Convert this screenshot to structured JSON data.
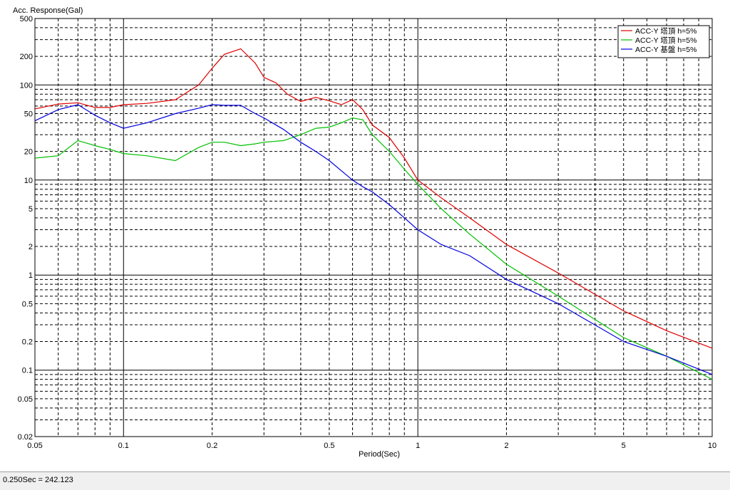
{
  "chart_data": {
    "type": "line",
    "title": "",
    "ylabel": "Acc. Response(Gal)",
    "xlabel": "Period(Sec)",
    "x_scale": "log",
    "y_scale": "log",
    "xlim": [
      0.05,
      10
    ],
    "ylim": [
      0.02,
      500
    ],
    "x_tick_labels": [
      "0.05",
      "0.1",
      "0.2",
      "0.5",
      "1",
      "2",
      "5",
      "10"
    ],
    "y_tick_labels": [
      "500",
      "200",
      "100",
      "50",
      "20",
      "10",
      "5",
      "2",
      "1",
      "0.5",
      "0.2",
      "0.1",
      "0.05",
      "0.02"
    ],
    "grid": true,
    "legend_position": "top-right",
    "series": [
      {
        "name": "ACC-Y 塔頂 h=5%",
        "color": "#e00000",
        "points": [
          [
            0.05,
            56
          ],
          [
            0.06,
            63
          ],
          [
            0.07,
            65
          ],
          [
            0.08,
            58
          ],
          [
            0.09,
            58
          ],
          [
            0.1,
            62
          ],
          [
            0.12,
            64
          ],
          [
            0.15,
            70
          ],
          [
            0.18,
            100
          ],
          [
            0.2,
            150
          ],
          [
            0.22,
            210
          ],
          [
            0.25,
            240
          ],
          [
            0.28,
            170
          ],
          [
            0.3,
            120
          ],
          [
            0.33,
            105
          ],
          [
            0.36,
            80
          ],
          [
            0.4,
            67
          ],
          [
            0.45,
            74
          ],
          [
            0.5,
            68
          ],
          [
            0.55,
            62
          ],
          [
            0.6,
            70
          ],
          [
            0.65,
            55
          ],
          [
            0.7,
            38
          ],
          [
            0.8,
            28
          ],
          [
            0.9,
            17
          ],
          [
            1.0,
            10
          ],
          [
            1.2,
            6.5
          ],
          [
            1.5,
            4.0
          ],
          [
            2.0,
            2.1
          ],
          [
            3.0,
            1.05
          ],
          [
            5.0,
            0.42
          ],
          [
            7.0,
            0.26
          ],
          [
            10.0,
            0.17
          ]
        ]
      },
      {
        "name": "ACC-Y 塔頂 h=5%",
        "color": "#00c000",
        "points": [
          [
            0.05,
            17
          ],
          [
            0.06,
            18
          ],
          [
            0.07,
            26
          ],
          [
            0.08,
            23
          ],
          [
            0.09,
            21
          ],
          [
            0.1,
            19
          ],
          [
            0.12,
            18
          ],
          [
            0.15,
            16
          ],
          [
            0.18,
            22
          ],
          [
            0.2,
            25
          ],
          [
            0.22,
            25
          ],
          [
            0.25,
            23
          ],
          [
            0.28,
            24
          ],
          [
            0.3,
            25
          ],
          [
            0.35,
            26
          ],
          [
            0.4,
            30
          ],
          [
            0.45,
            35
          ],
          [
            0.5,
            36
          ],
          [
            0.55,
            40
          ],
          [
            0.6,
            45
          ],
          [
            0.65,
            43
          ],
          [
            0.7,
            30
          ],
          [
            0.8,
            20
          ],
          [
            0.9,
            13
          ],
          [
            1.0,
            9.0
          ],
          [
            1.2,
            5.0
          ],
          [
            1.5,
            2.7
          ],
          [
            2.0,
            1.3
          ],
          [
            3.0,
            0.6
          ],
          [
            5.0,
            0.22
          ],
          [
            7.0,
            0.14
          ],
          [
            10.0,
            0.08
          ]
        ]
      },
      {
        "name": "ACC-Y 基盤 h=5%",
        "color": "#0000e0",
        "points": [
          [
            0.05,
            42
          ],
          [
            0.06,
            55
          ],
          [
            0.07,
            62
          ],
          [
            0.08,
            48
          ],
          [
            0.09,
            40
          ],
          [
            0.1,
            35
          ],
          [
            0.12,
            40
          ],
          [
            0.15,
            50
          ],
          [
            0.18,
            57
          ],
          [
            0.2,
            62
          ],
          [
            0.22,
            61
          ],
          [
            0.25,
            61
          ],
          [
            0.28,
            50
          ],
          [
            0.3,
            45
          ],
          [
            0.35,
            34
          ],
          [
            0.4,
            25
          ],
          [
            0.45,
            20
          ],
          [
            0.5,
            16
          ],
          [
            0.55,
            12.5
          ],
          [
            0.6,
            10
          ],
          [
            0.65,
            8.5
          ],
          [
            0.7,
            7.5
          ],
          [
            0.8,
            5.5
          ],
          [
            0.9,
            4.0
          ],
          [
            1.0,
            3.0
          ],
          [
            1.2,
            2.1
          ],
          [
            1.5,
            1.6
          ],
          [
            2.0,
            0.9
          ],
          [
            3.0,
            0.5
          ],
          [
            5.0,
            0.2
          ],
          [
            7.0,
            0.14
          ],
          [
            10.0,
            0.09
          ]
        ]
      }
    ]
  },
  "status": {
    "readout": "0.250Sec = 242.123"
  }
}
